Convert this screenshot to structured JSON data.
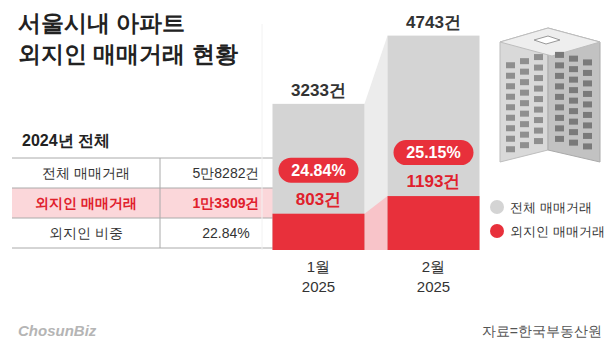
{
  "chart_data": {
    "type": "bar",
    "title": "서울시내 아파트\n외지인 매매거래 현황",
    "categories": [
      "1월\n2025",
      "2월\n2025"
    ],
    "series": [
      {
        "name": "전체 매매거래",
        "color": "#d4d4d4",
        "values": [
          3233,
          4743
        ],
        "value_labels": [
          "3233건",
          "4743건"
        ]
      },
      {
        "name": "외지인 매매거래",
        "color": "#e8303b",
        "values": [
          803,
          1193
        ],
        "value_labels": [
          "803건",
          "1193건"
        ],
        "shares": [
          24.84,
          25.15
        ],
        "share_labels": [
          "24.84%",
          "25.15%"
        ]
      }
    ],
    "ylim": [
      0,
      5000
    ],
    "tick_labels": false,
    "data_labels": true,
    "stacked": false,
    "grid": false,
    "legend": "right"
  },
  "table": {
    "title": "2024년 전체",
    "rows": [
      {
        "label": "전체 매매거래",
        "value": "5만8282건",
        "highlight": false
      },
      {
        "label": "외지인 매매거래",
        "value": "1만3309건",
        "highlight": true
      },
      {
        "label": "외지인 비중",
        "value": "22.84%",
        "highlight": false
      }
    ]
  },
  "source": "자료=한국부동산원",
  "logo": "ChosunBiz"
}
